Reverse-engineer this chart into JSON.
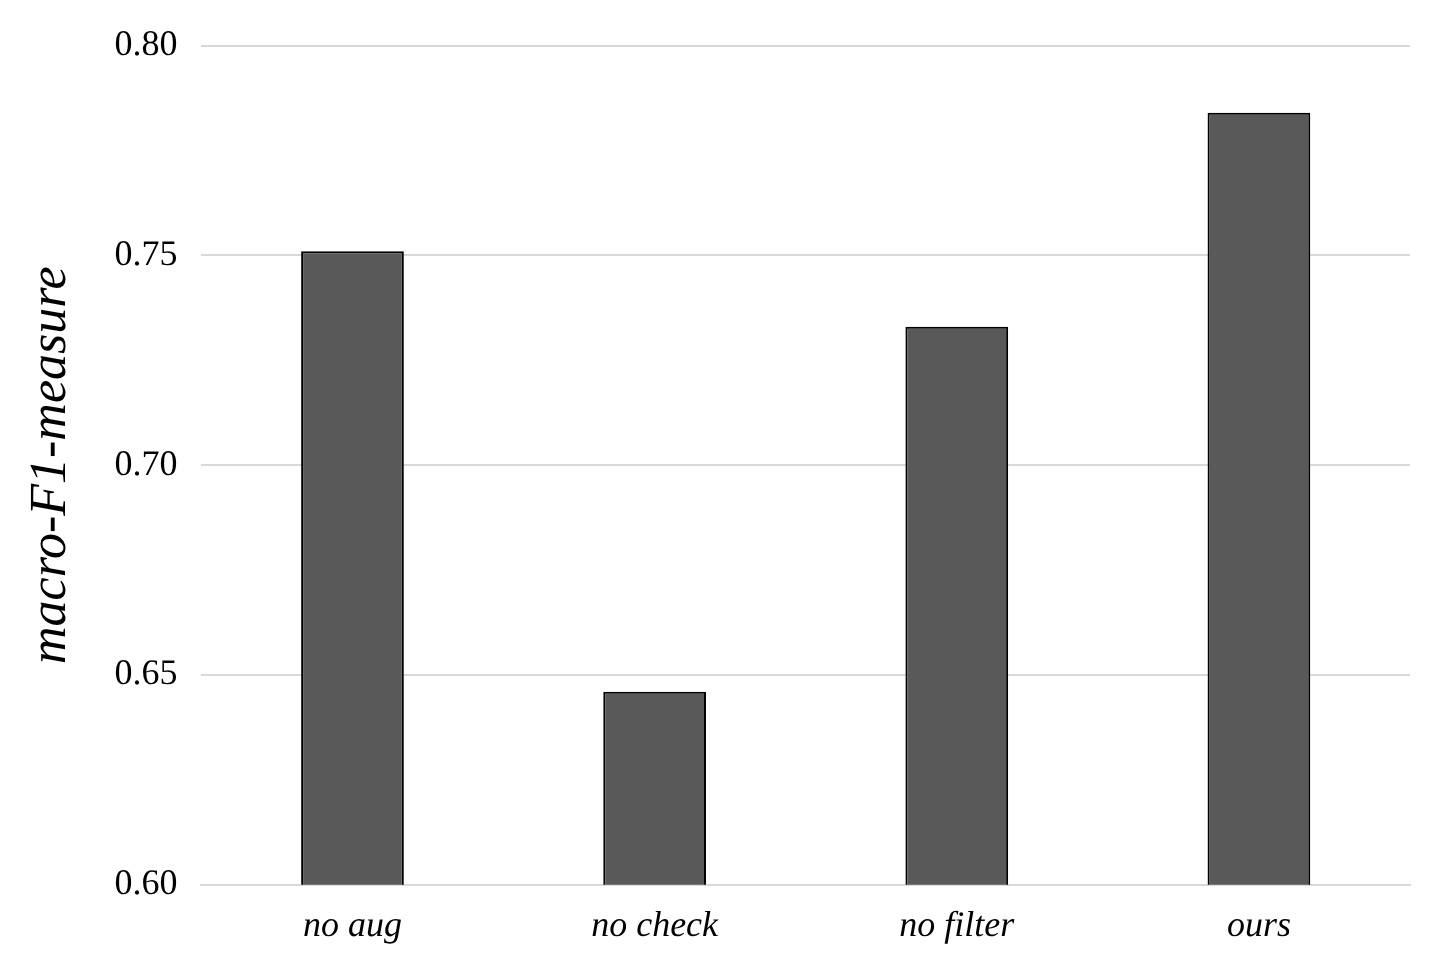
{
  "chart_data": {
    "type": "bar",
    "ylabel": "macro-F1-measure",
    "categories": [
      "no aug",
      "no check",
      "no filter",
      "ours"
    ],
    "values": [
      0.751,
      0.646,
      0.733,
      0.784
    ],
    "color": "#595959",
    "ylim": [
      0.6,
      0.8
    ],
    "yticks": [
      {
        "value": 0.6,
        "label": "0.60"
      },
      {
        "value": 0.65,
        "label": "0.65"
      },
      {
        "value": 0.7,
        "label": "0.70"
      },
      {
        "value": 0.75,
        "label": "0.75"
      },
      {
        "value": 0.8,
        "label": "0.80"
      }
    ],
    "grid": "y",
    "legend": false
  }
}
